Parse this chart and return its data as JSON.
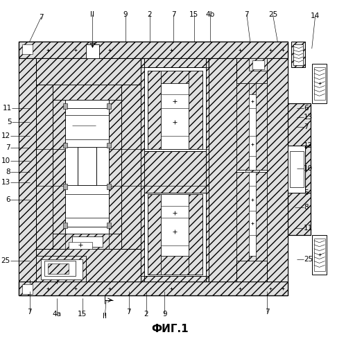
{
  "title": "ФИГ.1",
  "title_fs": 11,
  "bg": "#ffffff",
  "hatch": "///",
  "hatch_fc": "#e0e0e0",
  "lw_main": 0.8,
  "label_fs": 7.5,
  "top_labels": [
    [
      55,
      22,
      38,
      58,
      "7"
    ],
    [
      130,
      18,
      130,
      58,
      "II"
    ],
    [
      178,
      18,
      178,
      58,
      "9"
    ],
    [
      213,
      18,
      213,
      58,
      "2"
    ],
    [
      248,
      18,
      248,
      58,
      "7"
    ],
    [
      278,
      18,
      278,
      58,
      "15"
    ],
    [
      302,
      18,
      302,
      58,
      "4b"
    ],
    [
      355,
      18,
      360,
      58,
      "7"
    ],
    [
      393,
      18,
      400,
      58,
      "25"
    ],
    [
      455,
      20,
      450,
      68,
      "14"
    ]
  ],
  "left_labels": [
    [
      12,
      155,
      38,
      155,
      "11"
    ],
    [
      12,
      175,
      38,
      175,
      "5"
    ],
    [
      10,
      195,
      38,
      195,
      "12"
    ],
    [
      10,
      213,
      38,
      213,
      "7"
    ],
    [
      10,
      232,
      38,
      232,
      "10"
    ],
    [
      10,
      248,
      38,
      248,
      "8"
    ],
    [
      10,
      263,
      38,
      263,
      "13"
    ],
    [
      10,
      288,
      38,
      288,
      "6"
    ],
    [
      10,
      378,
      38,
      378,
      "25"
    ]
  ],
  "right_labels": [
    [
      438,
      155,
      428,
      155,
      "6"
    ],
    [
      438,
      168,
      428,
      168,
      "13"
    ],
    [
      438,
      182,
      428,
      182,
      "7"
    ],
    [
      438,
      210,
      428,
      210,
      "12"
    ],
    [
      438,
      243,
      428,
      243,
      "10"
    ],
    [
      438,
      278,
      425,
      278,
      "5"
    ],
    [
      438,
      300,
      425,
      300,
      "8"
    ],
    [
      438,
      330,
      425,
      330,
      "11"
    ],
    [
      438,
      375,
      428,
      375,
      "25"
    ]
  ],
  "bot_labels": [
    [
      38,
      452,
      38,
      422,
      "7"
    ],
    [
      78,
      455,
      78,
      432,
      "4a"
    ],
    [
      115,
      455,
      115,
      432,
      "15"
    ],
    [
      148,
      458,
      150,
      435,
      "II"
    ],
    [
      183,
      452,
      183,
      422,
      "7"
    ],
    [
      208,
      455,
      208,
      422,
      "2"
    ],
    [
      235,
      455,
      235,
      422,
      "9"
    ],
    [
      385,
      452,
      385,
      422,
      "7"
    ]
  ]
}
